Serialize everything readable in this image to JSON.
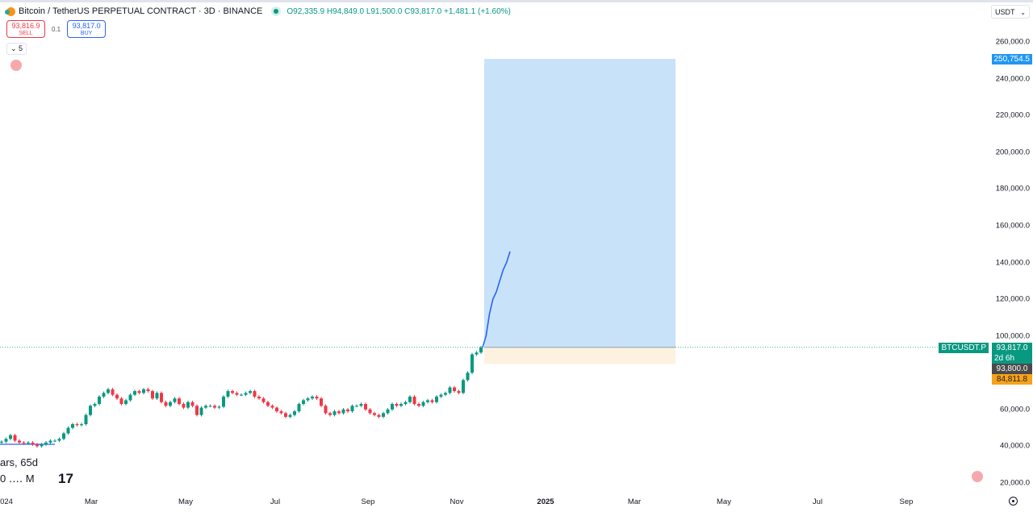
{
  "header": {
    "symbol_title": "Bitcoin / TetherUS PERPETUAL CONTRACT · 3D · BINANCE",
    "ohlc": {
      "open": "O92,335.9",
      "high": "H94,849.0",
      "low": "L91,500.0",
      "close": "C93,817.0",
      "change": "+1,481.1 (+1.60%)"
    },
    "sell_price": "93,816.9",
    "sell_label": "SELL",
    "spread": "0.1",
    "buy_price": "93,817.0",
    "buy_label": "BUY",
    "indicators_toggle": "5",
    "currency": "USDT"
  },
  "price_axis": [
    "260,000.0",
    "240,000.0",
    "220,000.0",
    "200,000.0",
    "180,000.0",
    "160,000.0",
    "140,000.0",
    "120,000.0",
    "100,000.0",
    "60,000.0",
    "40,000.0",
    "20,000.0"
  ],
  "price_tags": {
    "target": "250,754.5",
    "symbol": "BTCUSDT.P",
    "last": "93,817.0",
    "countdown": "2d 6h",
    "entry": "93,800.0",
    "stop": "84,811.8"
  },
  "time_axis": [
    "024",
    "Mar",
    "May",
    "Jul",
    "Sep",
    "Nov",
    "2025",
    "Mar",
    "May",
    "Jul",
    "Sep"
  ],
  "overlay_text": {
    "line1": "ars, 65d",
    "line2": "0 ‥‥ M",
    "logo": "17"
  },
  "colors": {
    "up": "#089981",
    "down": "#f23645",
    "profit_zone": "#c8e3f9",
    "loss_zone": "#fdf1e0",
    "projection": "#2962ff"
  },
  "chart_data": {
    "type": "candlestick",
    "interval": "3D",
    "closes": [
      42.5,
      44,
      46,
      43,
      42,
      41.5,
      42,
      41,
      40,
      41,
      42,
      43,
      43,
      44,
      47,
      50,
      52,
      51.5,
      52,
      57,
      62,
      63,
      67,
      69,
      71,
      68,
      66,
      63,
      65,
      68,
      70,
      69,
      71,
      70,
      66,
      69,
      64,
      62,
      64,
      66,
      63,
      61,
      64,
      62,
      57,
      61,
      62,
      62,
      61,
      61.5,
      67,
      70,
      69,
      68,
      68,
      69,
      70,
      67,
      66,
      64,
      62,
      61,
      59,
      58,
      56,
      57,
      59,
      63,
      65,
      66,
      67,
      66,
      62,
      58,
      57,
      59,
      58,
      60,
      59,
      62,
      62,
      63,
      60,
      58,
      57,
      56,
      58,
      60,
      63,
      62,
      63,
      64,
      67,
      63,
      62,
      64,
      65,
      64,
      67,
      68,
      69,
      72,
      70,
      69,
      76,
      80,
      90,
      91,
      93.8
    ],
    "close_unit": "thousand USDT",
    "projection": [
      93.8,
      100,
      112,
      120,
      124,
      130,
      136,
      140,
      146
    ],
    "position": {
      "entry": 93800,
      "target": 250754.5,
      "stop": 84811.8
    },
    "ylim": [
      20000,
      260000
    ]
  }
}
